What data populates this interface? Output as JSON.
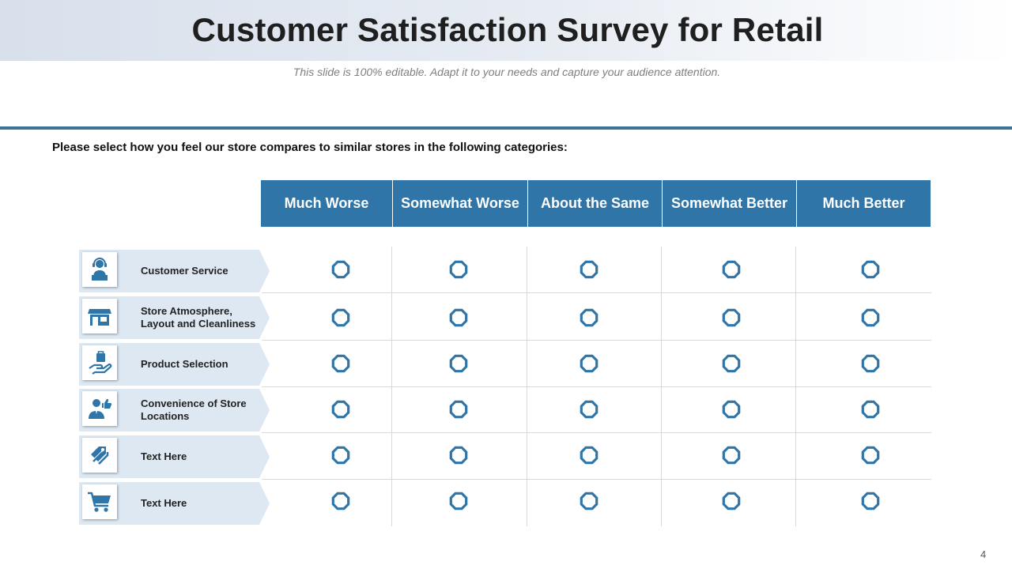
{
  "slide": {
    "title": "Customer Satisfaction Survey for Retail",
    "subtitle": "This slide is 100% editable. Adapt it to your needs and capture your audience attention.",
    "instruction": "Please select how you feel our store compares to similar stores in the following categories:",
    "page_number": "4"
  },
  "columns": [
    "Much Worse",
    "Somewhat Worse",
    "About the Same",
    "Somewhat Better",
    "Much Better"
  ],
  "rows": [
    {
      "label": "Customer Service",
      "icon": "customer-service-icon"
    },
    {
      "label": "Store Atmosphere, Layout and Cleanliness",
      "icon": "storefront-icon"
    },
    {
      "label": "Product Selection",
      "icon": "shopping-bag-hand-icon"
    },
    {
      "label": "Convenience of Store Locations",
      "icon": "person-thumbs-up-icon"
    },
    {
      "label": "Text Here",
      "icon": "price-tags-icon"
    },
    {
      "label": "Text Here",
      "icon": "shopping-cart-icon"
    }
  ],
  "colors": {
    "accent": "#2f75a8",
    "label_fill": "#dde8f2",
    "rule": "#3a7397",
    "radio_stroke": "#2f75a8"
  }
}
